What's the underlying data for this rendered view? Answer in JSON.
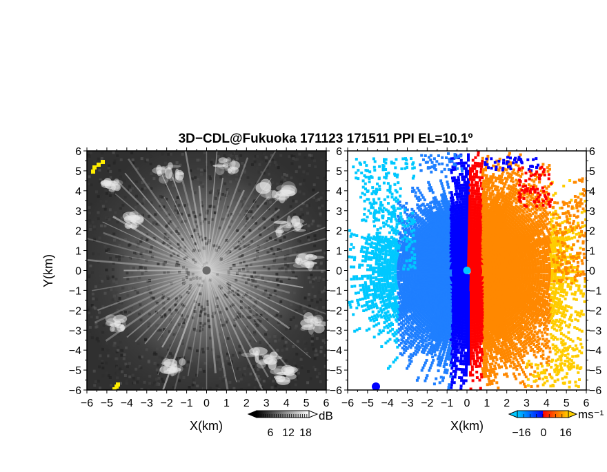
{
  "title": "3D−CDL@Fukuoka 171123 171511 PPI EL=10.1º",
  "x_label": "X(km)",
  "y_label": "Y(km)",
  "x_ticks": [
    "−6",
    "−5",
    "−4",
    "−3",
    "−2",
    "−1",
    "0",
    "1",
    "2",
    "3",
    "4",
    "5",
    "6"
  ],
  "y_ticks": [
    "6",
    "5",
    "4",
    "3",
    "2",
    "1",
    "0",
    "−1",
    "−2",
    "−3",
    "−4",
    "−5",
    "−6"
  ],
  "left_panel": {
    "colorbar": {
      "unit": "dB",
      "ticks": [
        "6",
        "12",
        "18"
      ]
    },
    "highlight_color": "#ffee00"
  },
  "right_panel": {
    "colorbar": {
      "unit": "ms⁻¹",
      "ticks": [
        "−16",
        "0",
        "16"
      ]
    },
    "colors": [
      "#00c8ff",
      "#1f7fff",
      "#0000ff",
      "#ff0000",
      "#ff8800",
      "#ffcc00"
    ]
  }
}
